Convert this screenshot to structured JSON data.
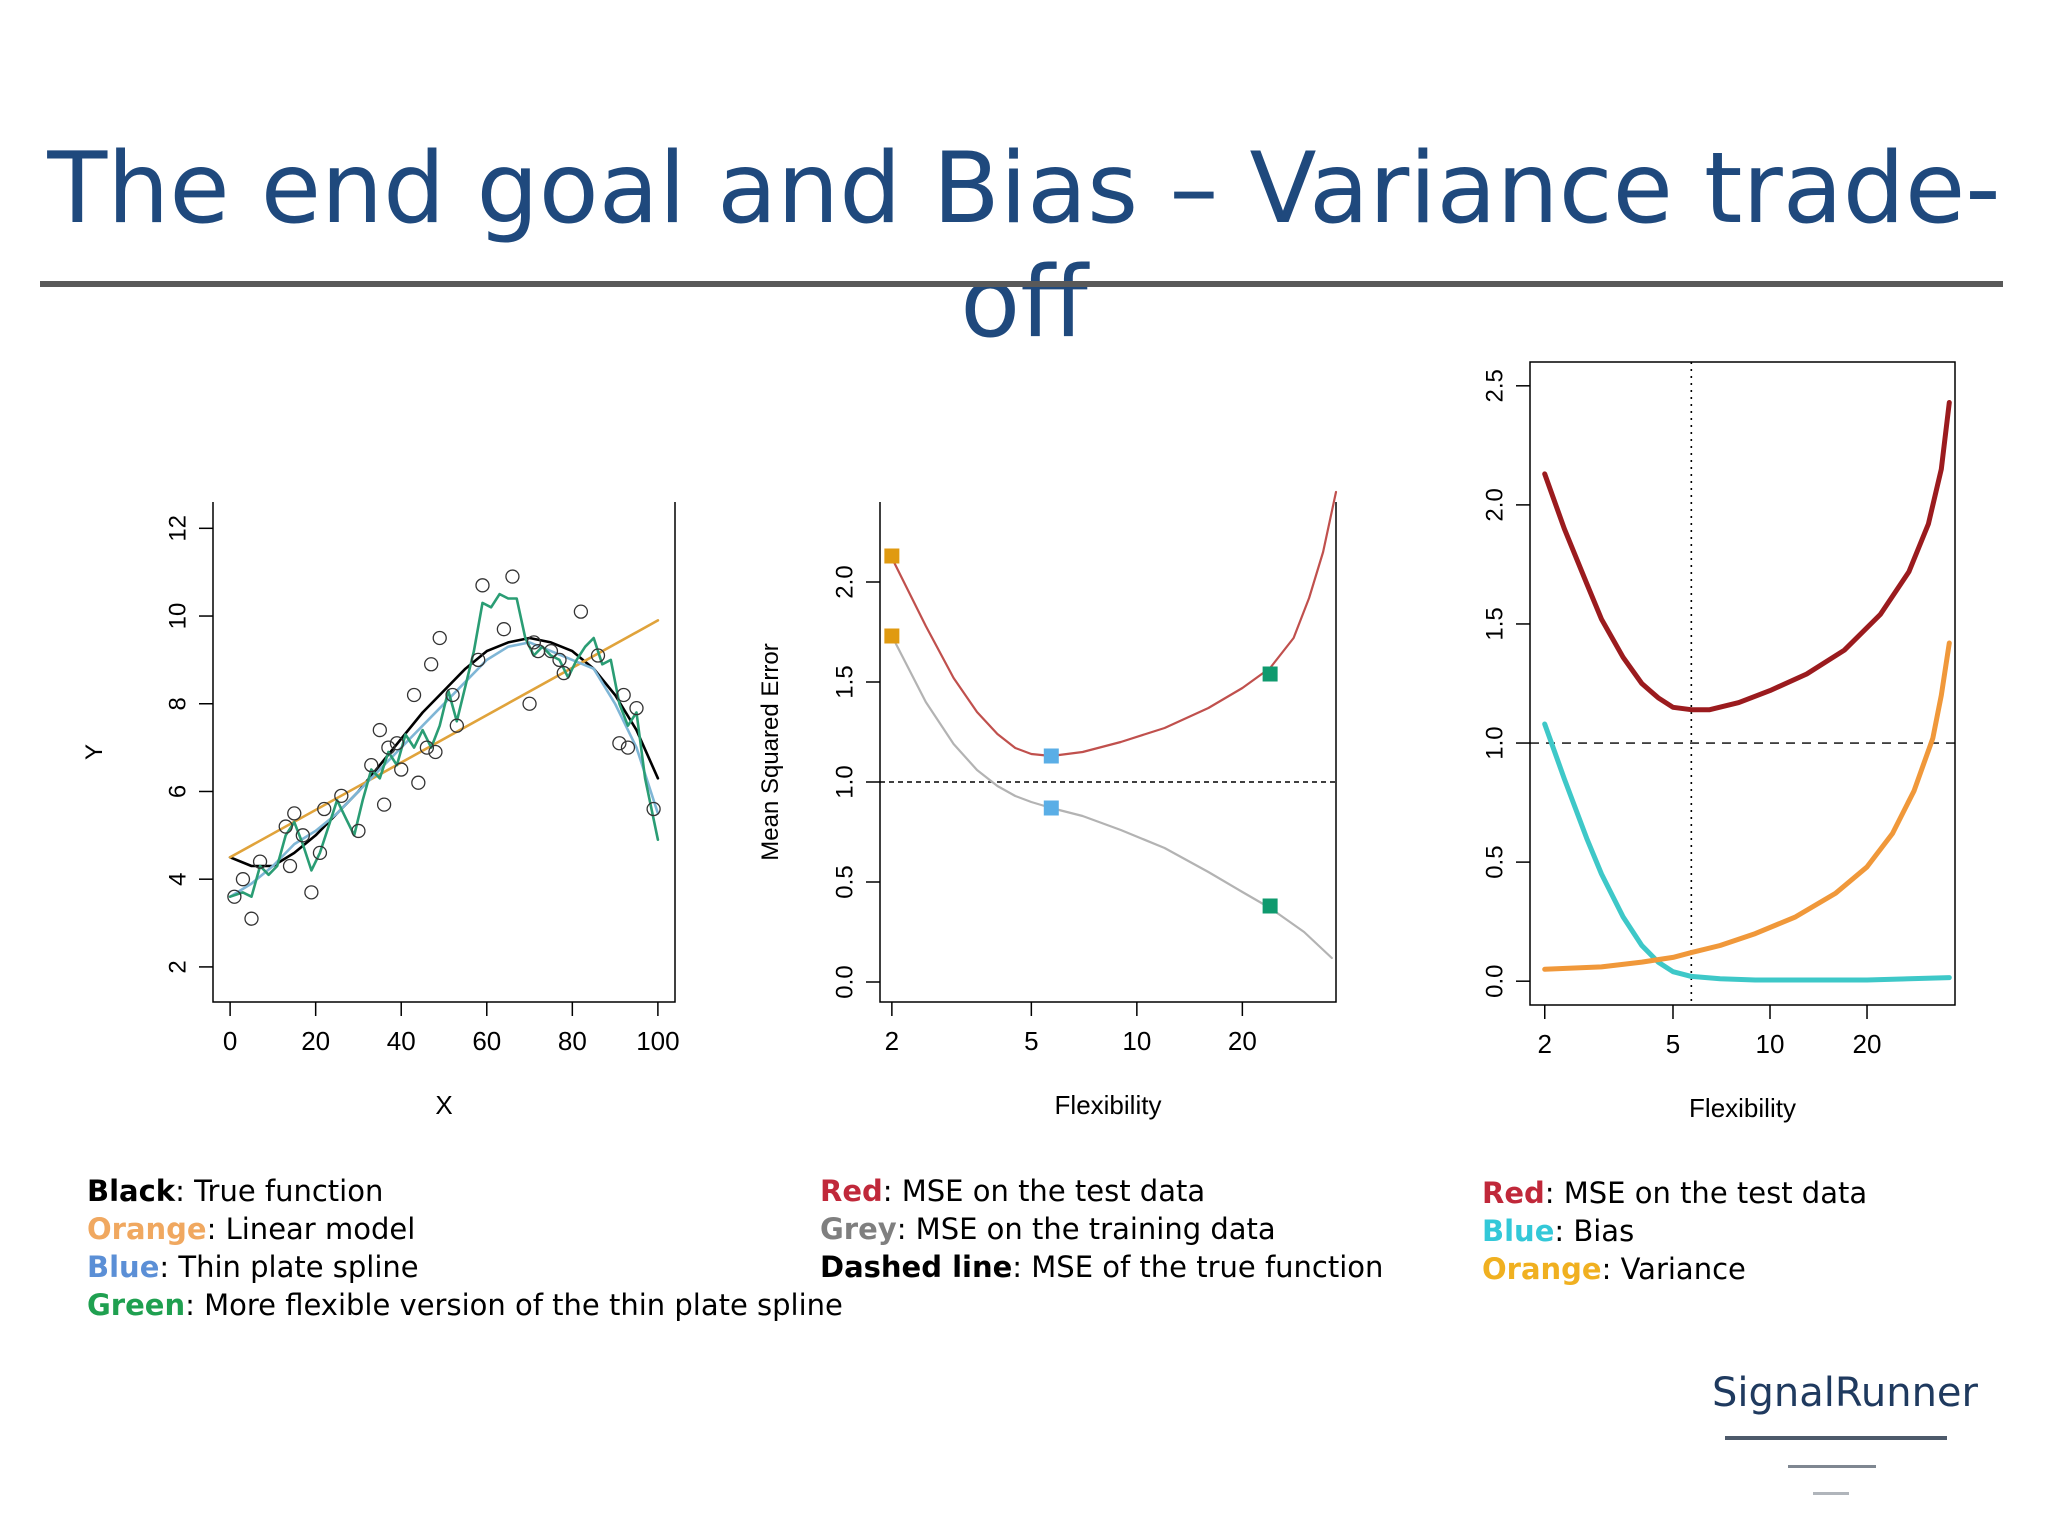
{
  "title": "The end goal and Bias – Variance trade-off",
  "logo": "SignalRunner",
  "colors": {
    "title": "#1f497d",
    "black": "#000000",
    "orange": "#e0a33b",
    "blue": "#7fb6d6",
    "green": "#2a9d74",
    "red": "#c0504d",
    "grey": "#b3b3b3",
    "darkred": "#9b1b1e",
    "cyan": "#3ec8c8",
    "orange2": "#f0983a",
    "marker_orange": "#e09a10",
    "marker_blue": "#5aaee6",
    "marker_green": "#0f9a6e",
    "label_red": "#c0283a",
    "label_orange": "#f0a860",
    "label_blue": "#5b8fd6",
    "label_green": "#1fa050",
    "label_grey": "#7f7f7f",
    "label_cyan": "#33c8d8",
    "label_orange3": "#f0b020"
  },
  "legends": {
    "left": [
      {
        "key": "Black",
        "text": ": True function",
        "color": "#000000"
      },
      {
        "key": "Orange",
        "text": ": Linear model",
        "color": "#f0a860"
      },
      {
        "key": "Blue",
        "text": ": Thin plate spline",
        "color": "#5b8fd6"
      },
      {
        "key": "Green",
        "text": ": More flexible version of the thin plate spline",
        "color": "#1fa050"
      }
    ],
    "middle": [
      {
        "key": "Red",
        "text": ": MSE on the test data",
        "color": "#c0283a"
      },
      {
        "key": "Grey",
        "text": ": MSE on the training data",
        "color": "#7f7f7f"
      },
      {
        "key": "Dashed line",
        "text": ": MSE of the true function",
        "color": "#000000"
      }
    ],
    "right": [
      {
        "key": "Red",
        "text": ": MSE on the test data",
        "color": "#c0283a"
      },
      {
        "key": "Blue",
        "text": ": Bias",
        "color": "#33c8d8"
      },
      {
        "key": "Orange",
        "text": ": Variance",
        "color": "#f0b020"
      }
    ]
  },
  "chart_data": [
    {
      "type": "scatter",
      "xlabel": "X",
      "ylabel": "Y",
      "xlim": [
        -4,
        104
      ],
      "ylim": [
        1.2,
        12.6
      ],
      "xticks": [
        0,
        20,
        40,
        60,
        80,
        100
      ],
      "yticks": [
        2,
        4,
        6,
        8,
        10,
        12
      ],
      "points": [
        [
          1,
          3.6
        ],
        [
          3,
          4.0
        ],
        [
          5,
          3.1
        ],
        [
          7,
          4.4
        ],
        [
          13,
          5.2
        ],
        [
          14,
          4.3
        ],
        [
          15,
          5.5
        ],
        [
          17,
          5.0
        ],
        [
          19,
          3.7
        ],
        [
          21,
          4.6
        ],
        [
          22,
          5.6
        ],
        [
          26,
          5.9
        ],
        [
          30,
          5.1
        ],
        [
          33,
          6.6
        ],
        [
          35,
          7.4
        ],
        [
          36,
          5.7
        ],
        [
          37,
          7.0
        ],
        [
          39,
          7.1
        ],
        [
          40,
          6.5
        ],
        [
          43,
          8.2
        ],
        [
          44,
          6.2
        ],
        [
          46,
          7.0
        ],
        [
          47,
          8.9
        ],
        [
          48,
          6.9
        ],
        [
          49,
          9.5
        ],
        [
          52,
          8.2
        ],
        [
          53,
          7.5
        ],
        [
          58,
          9.0
        ],
        [
          59,
          10.7
        ],
        [
          64,
          9.7
        ],
        [
          66,
          10.9
        ],
        [
          70,
          8.0
        ],
        [
          71,
          9.4
        ],
        [
          72,
          9.2
        ],
        [
          75,
          9.2
        ],
        [
          77,
          9.0
        ],
        [
          78,
          8.7
        ],
        [
          82,
          10.1
        ],
        [
          86,
          9.1
        ],
        [
          91,
          7.1
        ],
        [
          92,
          8.2
        ],
        [
          93,
          7.0
        ],
        [
          95,
          7.9
        ],
        [
          99,
          5.6
        ]
      ],
      "series": [
        {
          "name": "Black",
          "color": "#000000",
          "x": [
            0,
            5,
            10,
            15,
            20,
            25,
            30,
            35,
            40,
            45,
            50,
            55,
            60,
            65,
            70,
            75,
            80,
            85,
            90,
            95,
            100
          ],
          "y": [
            4.5,
            4.3,
            4.3,
            4.6,
            5.0,
            5.5,
            6.0,
            6.6,
            7.2,
            7.8,
            8.3,
            8.8,
            9.2,
            9.4,
            9.5,
            9.4,
            9.2,
            8.8,
            8.2,
            7.4,
            6.3
          ]
        },
        {
          "name": "Orange",
          "color": "#e0a33b",
          "x": [
            0,
            100
          ],
          "y": [
            4.5,
            9.9
          ]
        },
        {
          "name": "Blue",
          "color": "#7fb6d6",
          "x": [
            0,
            5,
            10,
            15,
            20,
            25,
            30,
            35,
            40,
            45,
            50,
            55,
            60,
            65,
            70,
            75,
            80,
            85,
            90,
            95,
            100
          ],
          "y": [
            3.6,
            3.9,
            4.3,
            4.8,
            5.1,
            5.5,
            6.0,
            6.5,
            7.0,
            7.5,
            8.0,
            8.5,
            9.0,
            9.3,
            9.4,
            9.2,
            9.0,
            8.8,
            8.0,
            7.0,
            5.5
          ]
        },
        {
          "name": "Green",
          "color": "#2a9d74",
          "x": [
            0,
            3,
            5,
            7,
            9,
            11,
            13,
            15,
            17,
            19,
            21,
            23,
            25,
            27,
            29,
            31,
            33,
            35,
            37,
            39,
            41,
            43,
            45,
            47,
            49,
            51,
            53,
            55,
            57,
            59,
            61,
            63,
            65,
            67,
            69,
            71,
            73,
            75,
            77,
            79,
            81,
            83,
            85,
            87,
            89,
            91,
            93,
            95,
            97,
            100
          ],
          "y": [
            3.6,
            3.7,
            3.6,
            4.3,
            4.1,
            4.3,
            5.0,
            5.3,
            4.8,
            4.2,
            4.6,
            5.2,
            5.8,
            5.4,
            5.0,
            5.8,
            6.5,
            6.3,
            6.9,
            6.6,
            7.3,
            7.0,
            7.4,
            7.0,
            7.5,
            8.3,
            7.6,
            8.4,
            9.2,
            10.3,
            10.2,
            10.5,
            10.4,
            10.4,
            9.5,
            9.1,
            9.3,
            9.1,
            9.0,
            8.6,
            9.0,
            9.3,
            9.5,
            8.9,
            9.0,
            8.0,
            7.5,
            7.8,
            6.3,
            4.9
          ]
        }
      ]
    },
    {
      "type": "line",
      "xlabel": "Flexibility",
      "ylabel": "Mean Squared Error",
      "xscale": "log",
      "xlim": [
        1.85,
        37
      ],
      "ylim": [
        -0.1,
        2.4
      ],
      "xticks": [
        2,
        5,
        10,
        20
      ],
      "yticks": [
        0.0,
        0.5,
        1.0,
        1.5,
        2.0
      ],
      "ytick_labels": [
        "0.0",
        "0.5",
        "1.0",
        "1.5",
        "2.0"
      ],
      "hline": 1.0,
      "series": [
        {
          "name": "Red",
          "color": "#c0504d",
          "x": [
            2,
            2.5,
            3,
            3.5,
            4,
            4.5,
            5,
            5.7,
            7,
            9,
            12,
            16,
            20,
            24,
            28,
            31,
            34,
            37
          ],
          "y": [
            2.12,
            1.78,
            1.52,
            1.35,
            1.24,
            1.17,
            1.14,
            1.13,
            1.15,
            1.2,
            1.27,
            1.37,
            1.47,
            1.57,
            1.72,
            1.92,
            2.15,
            2.45
          ]
        },
        {
          "name": "Grey",
          "color": "#b3b3b3",
          "x": [
            2,
            2.5,
            3,
            3.5,
            4,
            4.5,
            5,
            5.7,
            7,
            9,
            12,
            16,
            20,
            24,
            30,
            36
          ],
          "y": [
            1.73,
            1.4,
            1.19,
            1.06,
            0.98,
            0.93,
            0.9,
            0.87,
            0.83,
            0.76,
            0.67,
            0.55,
            0.45,
            0.37,
            0.25,
            0.12
          ]
        }
      ],
      "markers": [
        {
          "x": 2,
          "y": 2.13,
          "color": "#e09a10"
        },
        {
          "x": 2,
          "y": 1.73,
          "color": "#e09a10"
        },
        {
          "x": 5.7,
          "y": 1.13,
          "color": "#5aaee6"
        },
        {
          "x": 5.7,
          "y": 0.87,
          "color": "#5aaee6"
        },
        {
          "x": 24,
          "y": 1.54,
          "color": "#0f9a6e"
        },
        {
          "x": 24,
          "y": 0.38,
          "color": "#0f9a6e"
        }
      ]
    },
    {
      "type": "line",
      "xlabel": "Flexibility",
      "ylabel": "",
      "xscale": "log",
      "xlim": [
        1.8,
        37.5
      ],
      "ylim": [
        -0.1,
        2.6
      ],
      "xticks": [
        2,
        5,
        10,
        20
      ],
      "yticks": [
        0.0,
        0.5,
        1.0,
        1.5,
        2.0,
        2.5
      ],
      "ytick_labels": [
        "0.0",
        "0.5",
        "1.0",
        "1.5",
        "2.0",
        "2.5"
      ],
      "hline": 1.0,
      "vline": 5.7,
      "series": [
        {
          "name": "Red",
          "color": "#9b1b1e",
          "x": [
            2,
            2.3,
            2.7,
            3,
            3.5,
            4,
            4.5,
            5,
            5.7,
            6.5,
            8,
            10,
            13,
            17,
            22,
            27,
            31,
            34,
            36
          ],
          "y": [
            2.13,
            1.9,
            1.67,
            1.52,
            1.36,
            1.25,
            1.19,
            1.15,
            1.14,
            1.14,
            1.17,
            1.22,
            1.29,
            1.39,
            1.54,
            1.72,
            1.92,
            2.15,
            2.43
          ]
        },
        {
          "name": "Blue",
          "color": "#3ec8c8",
          "x": [
            2,
            2.3,
            2.7,
            3,
            3.5,
            4,
            4.5,
            5,
            5.7,
            7,
            9,
            12,
            20,
            36
          ],
          "y": [
            1.08,
            0.85,
            0.6,
            0.45,
            0.27,
            0.15,
            0.08,
            0.04,
            0.02,
            0.01,
            0.005,
            0.005,
            0.005,
            0.015
          ]
        },
        {
          "name": "Orange",
          "color": "#f0983a",
          "x": [
            2,
            3,
            4,
            5,
            5.7,
            7,
            9,
            12,
            16,
            20,
            24,
            28,
            32,
            34,
            36
          ],
          "y": [
            0.05,
            0.06,
            0.08,
            0.1,
            0.12,
            0.15,
            0.2,
            0.27,
            0.37,
            0.48,
            0.62,
            0.8,
            1.02,
            1.2,
            1.42
          ]
        }
      ]
    }
  ]
}
